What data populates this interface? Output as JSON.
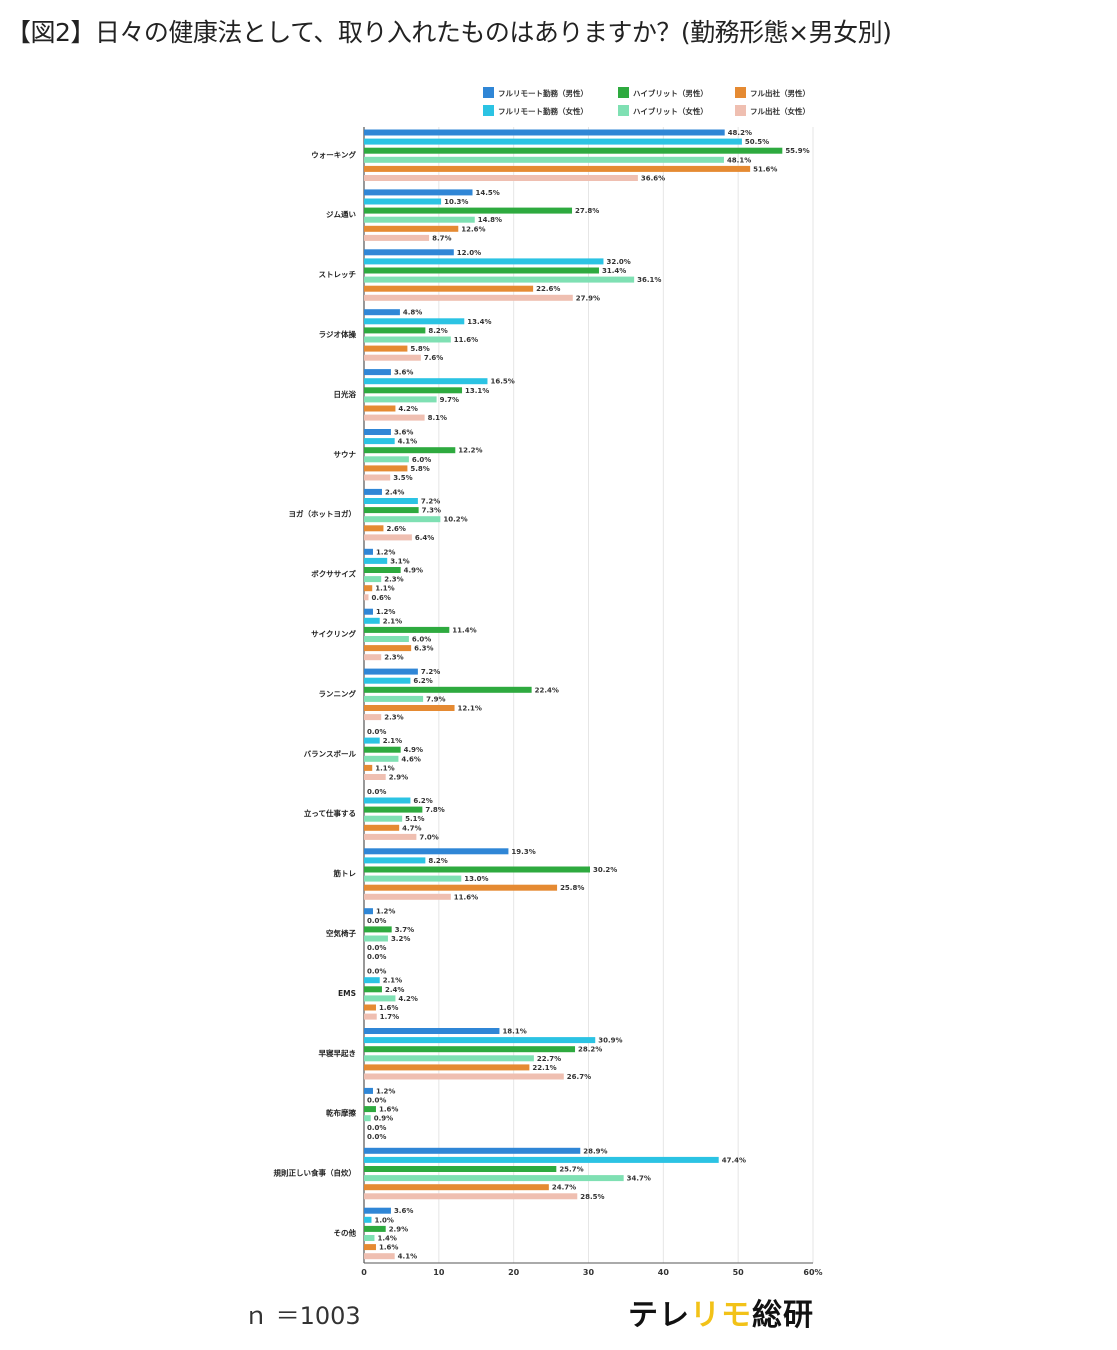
{
  "title": "【図2】日々の健康法として、取り入れたものはありますか？(勤務形態×男女別)",
  "footer": {
    "n_label": "ｎ ＝1003",
    "brand_part1": "テレ",
    "brand_part2": "リモ",
    "brand_part3": "総研"
  },
  "chart_data": {
    "type": "bar",
    "orientation": "horizontal",
    "title": "【図2】日々の健康法として、取り入れたものはありますか？(勤務形態×男女別)",
    "xlabel": "",
    "ylabel": "",
    "xlim": [
      0,
      60
    ],
    "x_ticks": [
      "0",
      "10",
      "20",
      "30",
      "40",
      "50",
      "60%"
    ],
    "grid": true,
    "legend_position": "top-right",
    "categories": [
      "ウォーキング",
      "ジム通い",
      "ストレッチ",
      "ラジオ体操",
      "日光浴",
      "サウナ",
      "ヨガ（ホットヨガ）",
      "ボクササイズ",
      "サイクリング",
      "ランニング",
      "バランスボール",
      "立って仕事する",
      "筋トレ",
      "空気椅子",
      "EMS",
      "早寝早起き",
      "乾布摩擦",
      "規則正しい食事（自炊）",
      "その他"
    ],
    "series": [
      {
        "name": "フルリモート勤務（男性）",
        "color": "#2f86d6",
        "values": [
          48.2,
          14.5,
          12.0,
          4.8,
          3.6,
          3.6,
          2.4,
          1.2,
          1.2,
          7.2,
          0.0,
          0.0,
          19.3,
          1.2,
          0.0,
          18.1,
          1.2,
          28.9,
          3.6
        ]
      },
      {
        "name": "フルリモート勤務（女性）",
        "color": "#2bc3e3",
        "values": [
          50.5,
          10.3,
          32.0,
          13.4,
          16.5,
          4.1,
          7.2,
          3.1,
          2.1,
          6.2,
          2.1,
          6.2,
          8.2,
          0.0,
          2.1,
          30.9,
          0.0,
          47.4,
          1.0
        ]
      },
      {
        "name": "ハイブリット（男性）",
        "color": "#2eaa3f",
        "values": [
          55.9,
          27.8,
          31.4,
          8.2,
          13.1,
          12.2,
          7.3,
          4.9,
          11.4,
          22.4,
          4.9,
          7.8,
          30.2,
          3.7,
          2.4,
          28.2,
          1.6,
          25.7,
          2.9
        ]
      },
      {
        "name": "ハイブリット（女性）",
        "color": "#7fe0b3",
        "values": [
          48.1,
          14.8,
          36.1,
          11.6,
          9.7,
          6.0,
          10.2,
          2.3,
          6.0,
          7.9,
          4.6,
          5.1,
          13.0,
          3.2,
          4.2,
          22.7,
          0.9,
          34.7,
          1.4
        ]
      },
      {
        "name": "フル出社（男性）",
        "color": "#e58a32",
        "values": [
          51.6,
          12.6,
          22.6,
          5.8,
          4.2,
          5.8,
          2.6,
          1.1,
          6.3,
          12.1,
          1.1,
          4.7,
          25.8,
          0.0,
          1.6,
          22.1,
          0.0,
          24.7,
          1.6
        ]
      },
      {
        "name": "フル出社（女性）",
        "color": "#efbfb1",
        "values": [
          36.6,
          8.7,
          27.9,
          7.6,
          8.1,
          3.5,
          6.4,
          0.6,
          2.3,
          2.3,
          2.9,
          7.0,
          11.6,
          0.0,
          1.7,
          26.7,
          0.0,
          28.5,
          4.1
        ]
      }
    ],
    "legend_order": [
      0,
      2,
      4,
      1,
      3,
      5
    ]
  }
}
